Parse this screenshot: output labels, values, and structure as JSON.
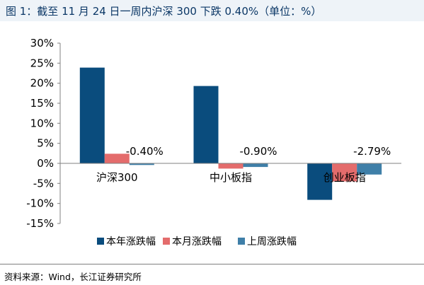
{
  "header": {
    "title": "图 1：截至 11 月 24 日一周内沪深 300 下跌 0.40%（单位：%）"
  },
  "footer": {
    "source": "资料来源：Wind，长江证券研究所"
  },
  "colors": {
    "title_bg": "#eef3f8",
    "title_text": "#0b3766",
    "series_year": "#0a4c7d",
    "series_month": "#e46c6c",
    "series_week": "#3f7fa8"
  },
  "chart_data": {
    "type": "bar",
    "title": "",
    "xlabel": "",
    "ylabel": "",
    "ylim": [
      -15,
      30
    ],
    "yticks": [
      30,
      25,
      20,
      15,
      10,
      5,
      0,
      -5,
      -10,
      -15
    ],
    "ytick_labels": [
      "30%",
      "25%",
      "20%",
      "15%",
      "10%",
      "5%",
      "0%",
      "-5%",
      "-10%",
      "-15%"
    ],
    "grid": false,
    "legend_position": "bottom",
    "categories": [
      "沪深300",
      "中小板指",
      "创业板指"
    ],
    "series": [
      {
        "name": "本年涨跌幅",
        "color": "#0a4c7d",
        "values": [
          23.9,
          19.3,
          -9.1
        ]
      },
      {
        "name": "本月涨跌幅",
        "color": "#e46c6c",
        "values": [
          2.4,
          -1.3,
          -4.5
        ]
      },
      {
        "name": "上周涨跌幅",
        "color": "#3f7fa8",
        "values": [
          -0.4,
          -0.9,
          -2.79
        ]
      }
    ],
    "annotations": [
      "-0.40%",
      "-0.90%",
      "-2.79%"
    ]
  }
}
